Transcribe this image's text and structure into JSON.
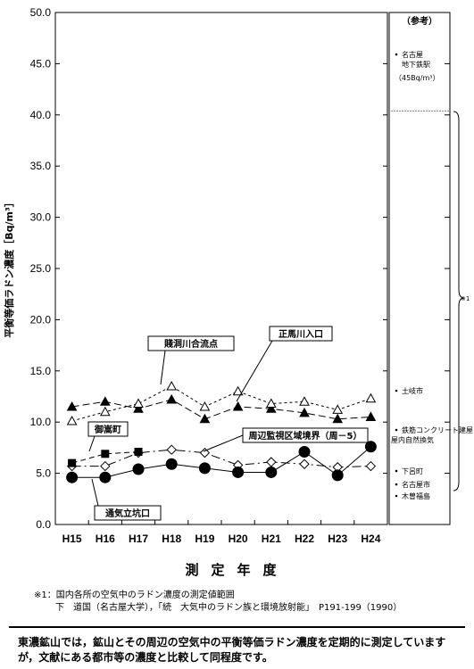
{
  "chart_data": {
    "type": "line",
    "ylabel": "平衡等価ラドン濃度［Bq/m³］",
    "xlabel": "測定年度",
    "ylim": [
      0,
      50
    ],
    "yticks": [
      "0.0",
      "5.0",
      "10.0",
      "15.0",
      "20.0",
      "25.0",
      "30.0",
      "35.0",
      "40.0",
      "45.0",
      "50.0"
    ],
    "categories": [
      "H15",
      "H16",
      "H17",
      "H18",
      "H19",
      "H20",
      "H21",
      "H22",
      "H23",
      "H24"
    ],
    "grid": false,
    "series": [
      {
        "name": "正馬川入口",
        "marker": "triangle-filled",
        "dash": "8,4",
        "values": [
          11.5,
          12.0,
          11.3,
          12.2,
          10.3,
          11.5,
          11.3,
          10.9,
          10.3,
          10.5
        ]
      },
      {
        "name": "賤洞川合流点",
        "marker": "triangle-open",
        "dash": "3,3",
        "values": [
          10.1,
          11.0,
          11.8,
          13.5,
          11.5,
          13.0,
          11.8,
          12.0,
          11.2,
          12.3
        ]
      },
      {
        "name": "周辺監視区域境界（周－5）",
        "marker": "diamond-open",
        "dash": "10,4,2,4",
        "values": [
          5.7,
          5.7,
          7.0,
          7.3,
          7.0,
          5.8,
          6.1,
          5.9,
          5.6,
          5.7
        ]
      },
      {
        "name": "御嵩町",
        "marker": "square-filled",
        "dash": "6,4",
        "values": [
          6.0,
          6.9,
          7.1,
          null,
          null,
          null,
          null,
          null,
          null,
          null
        ]
      },
      {
        "name": "通気立坑口",
        "marker": "circle-filled",
        "dash": "",
        "values": [
          4.6,
          4.6,
          5.4,
          5.9,
          5.5,
          5.1,
          5.1,
          7.1,
          4.8,
          7.6
        ]
      }
    ],
    "reference": {
      "title": "（参考）",
      "items": [
        {
          "label": "名古屋\n地下鉄駅\n（45Bq/m³）",
          "value": 45
        },
        {
          "label": "土岐市",
          "value": 12.5
        },
        {
          "label": "鉄筋コンクリート建屋\n屋内自然換気",
          "value": 8
        },
        {
          "label": "下呂町",
          "value": 4.5
        },
        {
          "label": "名古屋市",
          "value": 3.5
        },
        {
          "label": "木曽福島",
          "value": 2.5
        }
      ],
      "bracket_label": "※1"
    }
  },
  "footnote": {
    "line1": "※1：国内各所の空気中のラドン濃度の測定値範囲",
    "line2": "下　道国（名古屋大学），「続　大気中のラドン族と環境放射能」　P191-199（1990）"
  },
  "caption": "東濃鉱山では，鉱山とその周辺の空気中の平衡等価ラドン濃度を定期的に測定していますが，文献にある都市等の濃度と比較して同程度です。"
}
